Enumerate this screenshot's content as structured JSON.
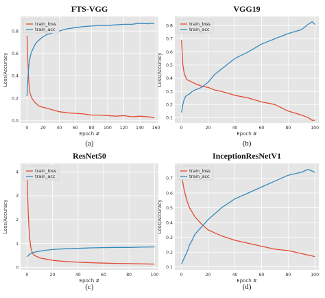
{
  "figure": {
    "panel_labels": [
      "(a)",
      "(b)",
      "(c)",
      "(d)"
    ]
  },
  "chart_data": [
    {
      "type": "line",
      "title": "FTS-VGG",
      "xlabel": "Epoch #",
      "ylabel": "Loss/Accuracy",
      "xlim": [
        -8,
        163
      ],
      "ylim": [
        -0.02,
        0.93
      ],
      "xticks": [
        "0",
        "20",
        "40",
        "60",
        "80",
        "100",
        "120",
        "140",
        "160"
      ],
      "yticks": [
        "0.0",
        "0.2",
        "0.4",
        "0.6",
        "0.8"
      ],
      "legend": "top-left",
      "grid": true,
      "series": [
        {
          "name": "train_loss",
          "color": "#E24A33",
          "x": [
            0,
            1,
            2,
            3,
            4,
            5,
            6,
            8,
            10,
            12,
            15,
            20,
            25,
            30,
            40,
            50,
            60,
            70,
            80,
            90,
            100,
            110,
            120,
            130,
            140,
            150,
            155,
            158
          ],
          "y": [
            0.76,
            0.52,
            0.37,
            0.28,
            0.24,
            0.22,
            0.2,
            0.18,
            0.16,
            0.15,
            0.13,
            0.12,
            0.11,
            0.1,
            0.08,
            0.07,
            0.065,
            0.06,
            0.05,
            0.05,
            0.045,
            0.04,
            0.045,
            0.035,
            0.04,
            0.035,
            0.03,
            0.025
          ]
        },
        {
          "name": "train_acc",
          "color": "#348ABD",
          "x": [
            0,
            1,
            2,
            3,
            4,
            5,
            6,
            8,
            10,
            12,
            15,
            20,
            25,
            30,
            40,
            50,
            60,
            70,
            80,
            90,
            100,
            110,
            120,
            130,
            140,
            150,
            155,
            158
          ],
          "y": [
            0.22,
            0.38,
            0.47,
            0.53,
            0.57,
            0.6,
            0.62,
            0.65,
            0.68,
            0.7,
            0.72,
            0.75,
            0.77,
            0.78,
            0.8,
            0.82,
            0.83,
            0.84,
            0.845,
            0.85,
            0.85,
            0.855,
            0.86,
            0.86,
            0.87,
            0.865,
            0.87,
            0.865
          ]
        }
      ]
    },
    {
      "type": "line",
      "title": "VGG19",
      "xlabel": "Epoch #",
      "ylabel": "Loss/Accuracy",
      "xlim": [
        -5,
        103
      ],
      "ylim": [
        0.06,
        0.87
      ],
      "xticks": [
        "0",
        "20",
        "40",
        "60",
        "80",
        "100"
      ],
      "yticks": [
        "0.1",
        "0.2",
        "0.3",
        "0.4",
        "0.5",
        "0.6",
        "0.7",
        "0.8"
      ],
      "legend": "top-left",
      "grid": true,
      "series": [
        {
          "name": "train_loss",
          "color": "#E24A33",
          "x": [
            0,
            1,
            2,
            3,
            4,
            6,
            8,
            10,
            15,
            20,
            25,
            30,
            40,
            50,
            60,
            70,
            80,
            90,
            95,
            98,
            100
          ],
          "y": [
            0.69,
            0.5,
            0.44,
            0.41,
            0.39,
            0.38,
            0.37,
            0.36,
            0.34,
            0.33,
            0.31,
            0.3,
            0.27,
            0.25,
            0.22,
            0.2,
            0.15,
            0.12,
            0.1,
            0.08,
            0.08
          ]
        },
        {
          "name": "train_acc",
          "color": "#348ABD",
          "x": [
            0,
            1,
            2,
            3,
            4,
            6,
            8,
            10,
            15,
            20,
            25,
            30,
            40,
            50,
            60,
            70,
            80,
            90,
            95,
            98,
            100
          ],
          "y": [
            0.14,
            0.2,
            0.24,
            0.26,
            0.27,
            0.28,
            0.3,
            0.31,
            0.33,
            0.37,
            0.43,
            0.47,
            0.55,
            0.6,
            0.66,
            0.7,
            0.74,
            0.77,
            0.81,
            0.83,
            0.81
          ]
        }
      ]
    },
    {
      "type": "line",
      "title": "ResNet50",
      "xlabel": "Epoch #",
      "ylabel": "Loss/Accuracy",
      "xlim": [
        -5,
        103
      ],
      "ylim": [
        -0.1,
        4.35
      ],
      "xticks": [
        "0",
        "20",
        "40",
        "60",
        "80",
        "100"
      ],
      "yticks": [
        "0",
        "1",
        "2",
        "3",
        "4"
      ],
      "legend": "top-left",
      "grid": true,
      "series": [
        {
          "name": "train_loss",
          "color": "#E24A33",
          "x": [
            0,
            1,
            2,
            3,
            4,
            5,
            6,
            8,
            10,
            15,
            20,
            30,
            40,
            50,
            60,
            70,
            80,
            90,
            100
          ],
          "y": [
            4.1,
            2.2,
            1.3,
            0.85,
            0.65,
            0.55,
            0.5,
            0.45,
            0.4,
            0.35,
            0.3,
            0.25,
            0.22,
            0.2,
            0.18,
            0.17,
            0.16,
            0.15,
            0.14
          ]
        },
        {
          "name": "train_acc",
          "color": "#348ABD",
          "x": [
            0,
            1,
            2,
            3,
            4,
            5,
            6,
            8,
            10,
            15,
            20,
            30,
            40,
            50,
            60,
            70,
            80,
            90,
            100
          ],
          "y": [
            0.45,
            0.5,
            0.55,
            0.58,
            0.6,
            0.62,
            0.64,
            0.66,
            0.68,
            0.72,
            0.75,
            0.78,
            0.8,
            0.82,
            0.83,
            0.84,
            0.84,
            0.85,
            0.86
          ]
        }
      ]
    },
    {
      "type": "line",
      "title": "InceptionResNetV1",
      "xlabel": "Epoch #",
      "ylabel": "Loss/Accuracy",
      "xlim": [
        -5,
        103
      ],
      "ylim": [
        0.08,
        0.8
      ],
      "xticks": [
        "0",
        "20",
        "40",
        "60",
        "80",
        "100"
      ],
      "yticks": [
        "0.1",
        "0.2",
        "0.3",
        "0.4",
        "0.5",
        "0.6",
        "0.7"
      ],
      "legend": "top-left",
      "grid": true,
      "series": [
        {
          "name": "train_loss",
          "color": "#E24A33",
          "x": [
            0,
            2,
            4,
            6,
            8,
            10,
            15,
            20,
            25,
            30,
            40,
            50,
            60,
            70,
            80,
            90,
            95,
            100
          ],
          "y": [
            0.72,
            0.62,
            0.55,
            0.5,
            0.47,
            0.44,
            0.39,
            0.35,
            0.33,
            0.31,
            0.28,
            0.26,
            0.24,
            0.22,
            0.21,
            0.19,
            0.18,
            0.17
          ]
        },
        {
          "name": "train_acc",
          "color": "#348ABD",
          "x": [
            0,
            1,
            2,
            3,
            4,
            5,
            6,
            8,
            10,
            15,
            20,
            30,
            40,
            50,
            60,
            70,
            80,
            90,
            95,
            100
          ],
          "y": [
            0.12,
            0.14,
            0.16,
            0.18,
            0.2,
            0.22,
            0.25,
            0.28,
            0.32,
            0.37,
            0.42,
            0.5,
            0.56,
            0.6,
            0.64,
            0.68,
            0.72,
            0.74,
            0.76,
            0.74
          ]
        }
      ]
    }
  ]
}
